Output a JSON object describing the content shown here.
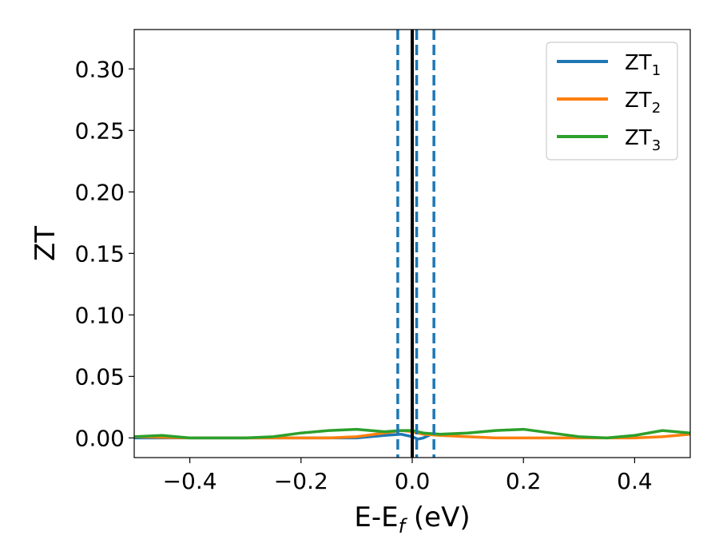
{
  "chart_data": {
    "type": "line",
    "xlabel": "E-E",
    "xlabel_sub": "f",
    "xlabel_unit": " (eV)",
    "ylabel": "ZT",
    "xlim": [
      -0.5,
      0.5
    ],
    "ylim": [
      -0.016,
      0.332
    ],
    "x_ticks": [
      -0.4,
      -0.2,
      0.0,
      0.2,
      0.4
    ],
    "x_tick_labels": [
      "−0.4",
      "−0.2",
      "0.0",
      "0.2",
      "0.4"
    ],
    "y_ticks": [
      0.0,
      0.05,
      0.1,
      0.15,
      0.2,
      0.25,
      0.3
    ],
    "y_tick_labels": [
      "0.00",
      "0.05",
      "0.10",
      "0.15",
      "0.20",
      "0.25",
      "0.30"
    ],
    "grid": false,
    "legend_position": "top-right",
    "series": [
      {
        "name": "ZT",
        "name_sub": "1",
        "color": "#1f77b4",
        "x": [
          -0.5,
          -0.45,
          -0.4,
          -0.3,
          -0.2,
          -0.1,
          -0.05,
          -0.02,
          0.0,
          0.01,
          0.02,
          0.03
        ],
        "y": [
          0.0,
          0.0,
          0.0,
          0.0,
          0.0,
          0.0,
          0.002,
          0.003,
          0.001,
          -0.001,
          0.0,
          0.002
        ]
      },
      {
        "name": "ZT",
        "name_sub": "2",
        "color": "#ff7f0e",
        "x": [
          -0.5,
          -0.4,
          -0.3,
          -0.2,
          -0.15,
          -0.1,
          -0.05,
          -0.02,
          0.0,
          0.02,
          0.05,
          0.1,
          0.15,
          0.2,
          0.25,
          0.3,
          0.35,
          0.4,
          0.45,
          0.5
        ],
        "y": [
          0.001,
          0.0,
          0.0,
          0.0,
          0.0,
          0.001,
          0.004,
          0.006,
          0.005,
          0.003,
          0.002,
          0.001,
          0.0,
          0.0,
          0.0,
          0.0,
          0.0,
          0.0,
          0.001,
          0.003
        ]
      },
      {
        "name": "ZT",
        "name_sub": "3",
        "color": "#2ca02c",
        "x": [
          -0.5,
          -0.45,
          -0.4,
          -0.35,
          -0.3,
          -0.25,
          -0.2,
          -0.15,
          -0.1,
          -0.05,
          -0.02,
          0.0,
          0.02,
          0.05,
          0.1,
          0.15,
          0.2,
          0.25,
          0.3,
          0.35,
          0.4,
          0.45,
          0.5
        ],
        "y": [
          0.001,
          0.002,
          0.0,
          0.0,
          0.0,
          0.001,
          0.004,
          0.006,
          0.007,
          0.005,
          0.006,
          0.006,
          0.004,
          0.003,
          0.004,
          0.006,
          0.007,
          0.004,
          0.001,
          0.0,
          0.002,
          0.006,
          0.004
        ]
      }
    ],
    "vertical_lines": [
      {
        "x": 0.0,
        "color": "#000000",
        "style": "solid"
      },
      {
        "x": -0.026,
        "color": "#1f77b4",
        "style": "dashed"
      },
      {
        "x": 0.008,
        "color": "#1f77b4",
        "style": "dashed"
      },
      {
        "x": 0.039,
        "color": "#1f77b4",
        "style": "dashed"
      }
    ]
  }
}
